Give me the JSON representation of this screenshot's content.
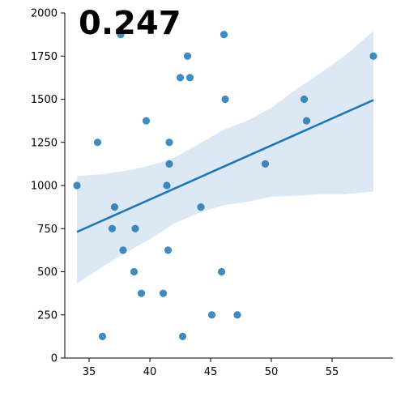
{
  "chart_data": {
    "type": "scatter",
    "title": "",
    "xlabel": "",
    "ylabel": "",
    "annotation": "0.247",
    "xlim": [
      33,
      60
    ],
    "ylim": [
      0,
      2000
    ],
    "x_ticks": [
      35,
      40,
      45,
      50,
      55
    ],
    "y_ticks": [
      0,
      250,
      500,
      750,
      1000,
      1250,
      1500,
      1750,
      2000
    ],
    "grid": false,
    "legend": "none",
    "points": [
      {
        "x": 34.0,
        "y": 1000
      },
      {
        "x": 35.7,
        "y": 1250
      },
      {
        "x": 36.1,
        "y": 125
      },
      {
        "x": 36.9,
        "y": 750
      },
      {
        "x": 37.1,
        "y": 875
      },
      {
        "x": 37.6,
        "y": 1875
      },
      {
        "x": 37.8,
        "y": 625
      },
      {
        "x": 38.7,
        "y": 500
      },
      {
        "x": 38.8,
        "y": 750
      },
      {
        "x": 39.3,
        "y": 375
      },
      {
        "x": 39.7,
        "y": 1375
      },
      {
        "x": 41.1,
        "y": 375
      },
      {
        "x": 41.4,
        "y": 1000
      },
      {
        "x": 41.5,
        "y": 625
      },
      {
        "x": 41.6,
        "y": 1125
      },
      {
        "x": 41.6,
        "y": 1250
      },
      {
        "x": 42.5,
        "y": 1625
      },
      {
        "x": 42.7,
        "y": 125
      },
      {
        "x": 43.1,
        "y": 1750
      },
      {
        "x": 43.3,
        "y": 1625
      },
      {
        "x": 44.2,
        "y": 875
      },
      {
        "x": 45.1,
        "y": 250
      },
      {
        "x": 45.9,
        "y": 500
      },
      {
        "x": 46.1,
        "y": 1875
      },
      {
        "x": 46.2,
        "y": 1500
      },
      {
        "x": 47.2,
        "y": 250
      },
      {
        "x": 49.5,
        "y": 1125
      },
      {
        "x": 52.7,
        "y": 1500
      },
      {
        "x": 52.9,
        "y": 1375
      },
      {
        "x": 58.4,
        "y": 1750
      }
    ],
    "regression": {
      "x": [
        34.0,
        58.4
      ],
      "y": [
        731,
        1495
      ]
    },
    "confidence_band": {
      "x": [
        34.0,
        36.0,
        38.0,
        40.0,
        42.0,
        44.0,
        46.0,
        48.0,
        50.0,
        52.0,
        54.0,
        56.0,
        58.4
      ],
      "lower": [
        432,
        525,
        609,
        689,
        780,
        840,
        885,
        905,
        935,
        940,
        950,
        950,
        965
      ],
      "upper": [
        1055,
        1065,
        1085,
        1115,
        1160,
        1240,
        1320,
        1375,
        1450,
        1555,
        1650,
        1750,
        1895
      ]
    },
    "colors": {
      "points": "#1f77b4",
      "line": "#1f77b4",
      "band": "#dce8f4"
    }
  }
}
